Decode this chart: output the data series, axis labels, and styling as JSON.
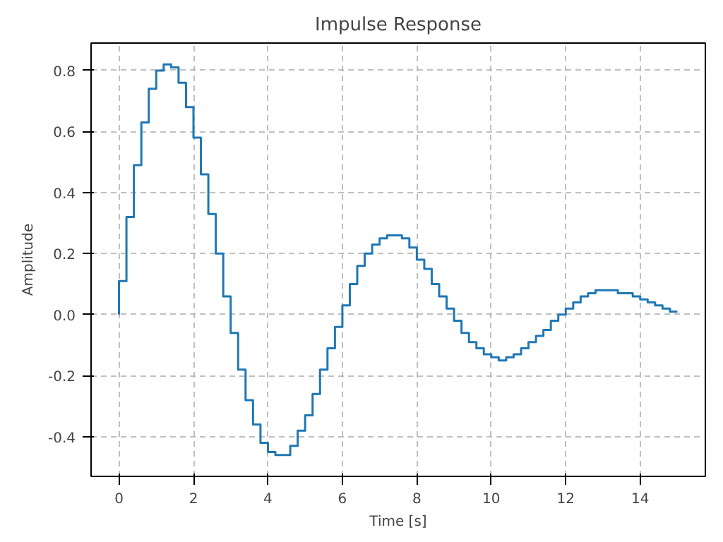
{
  "chart_data": {
    "type": "step",
    "title": "Impulse Response",
    "xlabel": "Time [s]",
    "ylabel": "Amplitude",
    "x": [
      0,
      0.2,
      0.4,
      0.6,
      0.8,
      1,
      1.2,
      1.4,
      1.6,
      1.8,
      2,
      2.2,
      2.4,
      2.6,
      2.8,
      3,
      3.2,
      3.4,
      3.6,
      3.8,
      4,
      4.2,
      4.4,
      4.6,
      4.8,
      5,
      5.2,
      5.4,
      5.6,
      5.8,
      6,
      6.2,
      6.4,
      6.6,
      6.8,
      7,
      7.2,
      7.4,
      7.6,
      7.8,
      8,
      8.2,
      8.4,
      8.6,
      8.8,
      9,
      9.2,
      9.4,
      9.6,
      9.8,
      10,
      10.2,
      10.4,
      10.6,
      10.8,
      11,
      11.2,
      11.4,
      11.6,
      11.8,
      12,
      12.2,
      12.4,
      12.6,
      12.8,
      13,
      13.2,
      13.4,
      13.6,
      13.8,
      14,
      14.2,
      14.4,
      14.6,
      14.8,
      15
    ],
    "series": [
      {
        "color": "#1f77b4",
        "values": [
          0,
          0.11,
          0.32,
          0.49,
          0.63,
          0.74,
          0.8,
          0.82,
          0.81,
          0.76,
          0.68,
          0.58,
          0.46,
          0.33,
          0.2,
          0.06,
          -0.06,
          -0.18,
          -0.28,
          -0.36,
          -0.42,
          -0.45,
          -0.46,
          -0.46,
          -0.43,
          -0.38,
          -0.33,
          -0.26,
          -0.18,
          -0.11,
          -0.04,
          0.03,
          0.1,
          0.16,
          0.2,
          0.23,
          0.25,
          0.26,
          0.26,
          0.25,
          0.22,
          0.18,
          0.15,
          0.1,
          0.06,
          0.02,
          -0.02,
          -0.06,
          -0.09,
          -0.11,
          -0.13,
          -0.14,
          -0.15,
          -0.14,
          -0.13,
          -0.11,
          -0.09,
          -0.07,
          -0.05,
          -0.02,
          0.0,
          0.02,
          0.04,
          0.06,
          0.07,
          0.08,
          0.08,
          0.08,
          0.07,
          0.07,
          0.06,
          0.05,
          0.04,
          0.03,
          0.02,
          0.01
        ]
      }
    ],
    "xlim": [
      -0.75,
      15.75
    ],
    "ylim": [
      -0.53,
      0.89
    ],
    "xticks": [
      0,
      2,
      4,
      6,
      8,
      10,
      12,
      14
    ],
    "yticks": [
      -0.4,
      -0.2,
      {
        "value": 0,
        "label": "0.0"
      },
      0.2,
      0.4,
      0.6,
      0.8
    ],
    "grid": true,
    "line_style": "solid"
  }
}
